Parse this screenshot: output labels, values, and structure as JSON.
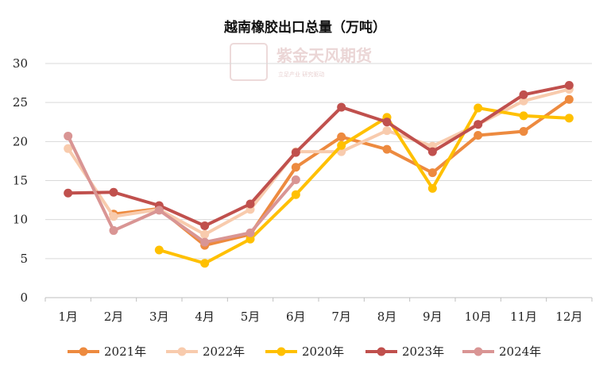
{
  "chart_data": {
    "type": "line",
    "title": "越南橡胶出口总量（万吨）",
    "xlabel": "",
    "ylabel": "",
    "categories": [
      "1月",
      "2月",
      "3月",
      "4月",
      "5月",
      "6月",
      "7月",
      "8月",
      "9月",
      "10月",
      "11月",
      "12月"
    ],
    "ylim": [
      0,
      30
    ],
    "yticks": [
      0,
      5,
      10,
      15,
      20,
      25,
      30
    ],
    "grid": "horizontal",
    "legend_position": "bottom",
    "series": [
      {
        "name": "2021年",
        "color": "#ED8A3F",
        "values": [
          null,
          10.7,
          11.4,
          6.7,
          8.1,
          16.7,
          20.6,
          19.0,
          16.0,
          20.8,
          21.3,
          25.4
        ]
      },
      {
        "name": "2022年",
        "color": "#F8CBAD",
        "values": [
          19.1,
          10.4,
          11.3,
          8.1,
          11.3,
          18.7,
          18.7,
          21.4,
          19.4,
          22.2,
          25.2,
          26.7
        ]
      },
      {
        "name": "2020年",
        "color": "#FFC000",
        "values": [
          null,
          null,
          6.1,
          4.4,
          7.5,
          13.2,
          19.5,
          23.1,
          14.0,
          24.3,
          23.3,
          23.0
        ]
      },
      {
        "name": "2023年",
        "color": "#C0504D",
        "values": [
          13.4,
          13.5,
          11.8,
          9.2,
          12.0,
          18.6,
          24.4,
          22.5,
          18.7,
          22.2,
          26.0,
          27.2
        ]
      },
      {
        "name": "2024年",
        "color": "#D99594",
        "values": [
          20.7,
          8.6,
          11.2,
          7.1,
          8.3,
          15.1,
          null,
          null,
          null,
          null,
          null,
          null
        ]
      }
    ]
  },
  "watermark": {
    "logo_text": "紫金天风期货",
    "seal_text": "紫天金风",
    "tagline": "立足产业 研究驱动"
  }
}
